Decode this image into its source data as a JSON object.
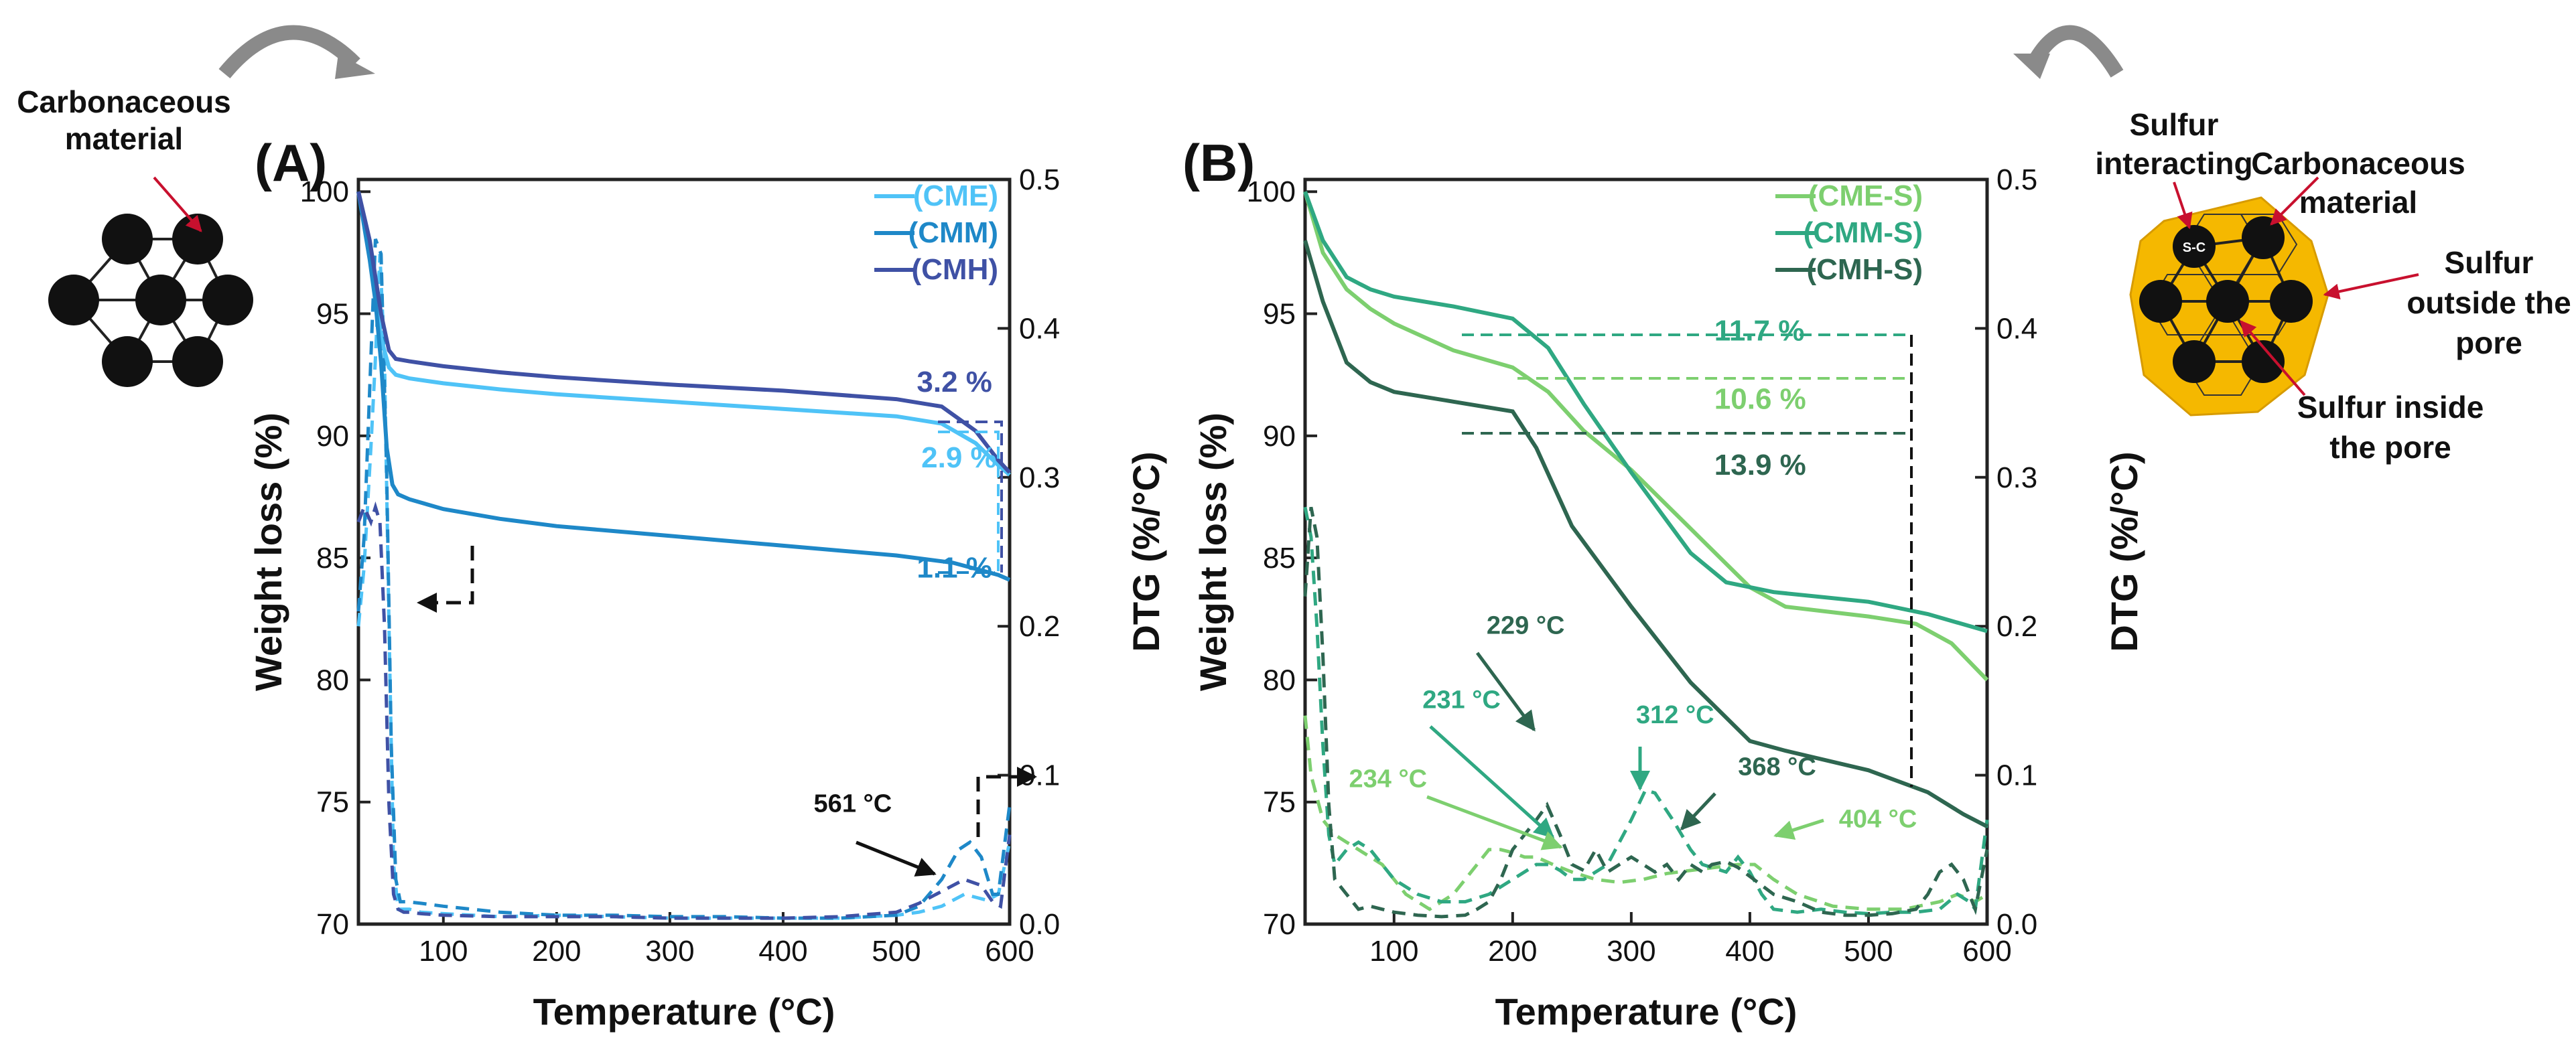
{
  "chart_data": [
    {
      "type": "line",
      "panel_label": "(A)",
      "xlabel": "Temperature (°C)",
      "ylabel": "Weight loss (%)",
      "y2label": "DTG (%/°C)",
      "xlim": [
        25,
        600
      ],
      "ylim": [
        70,
        100.5
      ],
      "y2lim": [
        0,
        0.5
      ],
      "x_ticks": [
        "100",
        "200",
        "300",
        "400",
        "500",
        "600"
      ],
      "y_ticks": [
        "70",
        "75",
        "80",
        "85",
        "90",
        "95",
        "100"
      ],
      "y2_ticks": [
        "0.0",
        "0.1",
        "0.2",
        "0.3",
        "0.4",
        "0.5"
      ],
      "legend": [
        "(CME)",
        "(CMM)",
        "(CMH)"
      ],
      "series": [
        {
          "name": "(CME)",
          "color": "#4fc3f7",
          "x": [
            25,
            35,
            45,
            52,
            58,
            70,
            100,
            150,
            200,
            300,
            400,
            500,
            540,
            570,
            590,
            600
          ],
          "y": [
            100,
            97.5,
            94,
            92.8,
            92.5,
            92.35,
            92.15,
            91.9,
            91.7,
            91.4,
            91.1,
            90.8,
            90.5,
            89.7,
            88.8,
            88.4
          ]
        },
        {
          "name": "(CMM)",
          "color": "#1e88c8",
          "x": [
            25,
            35,
            40,
            45,
            50,
            55,
            60,
            70,
            100,
            150,
            200,
            300,
            400,
            500,
            550,
            590,
            600
          ],
          "y": [
            100,
            97.2,
            95.5,
            93,
            89.5,
            88,
            87.6,
            87.4,
            87,
            86.6,
            86.3,
            85.9,
            85.5,
            85.1,
            84.8,
            84.3,
            84.1
          ]
        },
        {
          "name": "(CMH)",
          "color": "#3f51a5",
          "x": [
            25,
            35,
            45,
            52,
            58,
            70,
            100,
            150,
            200,
            300,
            400,
            500,
            540,
            570,
            590,
            600
          ],
          "y": [
            100,
            98,
            95,
            93.5,
            93.15,
            93.05,
            92.85,
            92.6,
            92.4,
            92.1,
            91.85,
            91.5,
            91.2,
            90.2,
            89,
            88.5
          ]
        }
      ],
      "dtg_series": [
        {
          "name": "(CME)",
          "color": "#4fc3f7",
          "x": [
            25,
            30,
            36,
            40,
            44,
            48,
            52,
            56,
            60,
            65,
            70,
            80,
            100,
            150,
            200,
            250,
            300,
            350,
            400,
            450,
            500,
            520,
            540,
            560,
            580,
            590,
            600
          ],
          "y": [
            0.2,
            0.24,
            0.32,
            0.38,
            0.45,
            0.38,
            0.2,
            0.04,
            0.01,
            0.01,
            0.01,
            0.008,
            0.007,
            0.005,
            0.006,
            0.005,
            0.004,
            0.004,
            0.004,
            0.004,
            0.006,
            0.008,
            0.012,
            0.02,
            0.016,
            0.02,
            0.055
          ]
        },
        {
          "name": "(CMM)",
          "color": "#1e88c8",
          "x": [
            25,
            30,
            35,
            40,
            45,
            50,
            54,
            58,
            62,
            68,
            80,
            100,
            150,
            200,
            250,
            300,
            350,
            400,
            450,
            500,
            520,
            540,
            555,
            565,
            575,
            585,
            590,
            595,
            600
          ],
          "y": [
            0.21,
            0.26,
            0.36,
            0.46,
            0.45,
            0.3,
            0.12,
            0.03,
            0.015,
            0.015,
            0.014,
            0.012,
            0.008,
            0.006,
            0.006,
            0.005,
            0.005,
            0.004,
            0.004,
            0.006,
            0.012,
            0.03,
            0.05,
            0.055,
            0.045,
            0.02,
            0.02,
            0.05,
            0.08
          ]
        },
        {
          "name": "(CMH)",
          "color": "#3f51a5",
          "x": [
            25,
            30,
            36,
            40,
            44,
            48,
            52,
            56,
            60,
            65,
            70,
            80,
            100,
            150,
            200,
            250,
            300,
            350,
            400,
            450,
            500,
            520,
            540,
            560,
            575,
            585,
            592,
            600
          ],
          "y": [
            0.27,
            0.28,
            0.27,
            0.28,
            0.27,
            0.2,
            0.08,
            0.02,
            0.01,
            0.008,
            0.008,
            0.007,
            0.006,
            0.005,
            0.005,
            0.005,
            0.004,
            0.004,
            0.004,
            0.005,
            0.008,
            0.014,
            0.022,
            0.03,
            0.026,
            0.015,
            0.012,
            0.06
          ]
        }
      ],
      "annotations": [
        {
          "text": "3.2 %",
          "x": 518,
          "y": 91.8,
          "color": "#3f51a5"
        },
        {
          "text": "2.9 %",
          "x": 522,
          "y": 88.7,
          "color": "#4fc3f7"
        },
        {
          "text": "1.1 %",
          "x": 518,
          "y": 84.2,
          "color": "#1e88c8"
        },
        {
          "text": "561 °C",
          "x": 427,
          "y": 74.6,
          "color": "#111111"
        }
      ]
    },
    {
      "type": "line",
      "panel_label": "(B)",
      "xlabel": "Temperature (°C)",
      "ylabel": "Weight loss (%)",
      "y2label": "DTG (%/°C)",
      "xlim": [
        25,
        600
      ],
      "ylim": [
        70,
        100.5
      ],
      "y2lim": [
        0,
        0.5
      ],
      "x_ticks": [
        "100",
        "200",
        "300",
        "400",
        "500",
        "600"
      ],
      "y_ticks": [
        "70",
        "75",
        "80",
        "85",
        "90",
        "95",
        "100"
      ],
      "y2_ticks": [
        "0.0",
        "0.1",
        "0.2",
        "0.3",
        "0.4",
        "0.5"
      ],
      "legend": [
        "(CME-S)",
        "(CMM-S)",
        "(CMH-S)"
      ],
      "series": [
        {
          "name": "(CME-S)",
          "color": "#7dcf6f",
          "x": [
            25,
            40,
            60,
            80,
            100,
            150,
            200,
            230,
            260,
            300,
            350,
            400,
            430,
            500,
            540,
            570,
            590,
            600
          ],
          "y": [
            100,
            97.5,
            96,
            95.2,
            94.6,
            93.5,
            92.8,
            91.8,
            90.2,
            88.6,
            86.2,
            83.8,
            83,
            82.6,
            82.3,
            81.5,
            80.5,
            80
          ]
        },
        {
          "name": "(CMM-S)",
          "color": "#2fa882",
          "x": [
            25,
            40,
            60,
            80,
            100,
            150,
            200,
            230,
            260,
            300,
            350,
            380,
            420,
            500,
            550,
            600
          ],
          "y": [
            100,
            98,
            96.5,
            96,
            95.7,
            95.3,
            94.8,
            93.6,
            91.3,
            88.5,
            85.2,
            84,
            83.6,
            83.2,
            82.7,
            82
          ]
        },
        {
          "name": "(CMH-S)",
          "color": "#2e6650",
          "x": [
            25,
            40,
            60,
            80,
            100,
            150,
            200,
            220,
            250,
            300,
            350,
            400,
            430,
            500,
            550,
            580,
            600
          ],
          "y": [
            98,
            95.5,
            93,
            92.2,
            91.8,
            91.4,
            91,
            89.5,
            86.3,
            83,
            79.9,
            77.5,
            77.1,
            76.3,
            75.4,
            74.5,
            74
          ]
        }
      ],
      "dtg_series": [
        {
          "name": "(CME-S)",
          "color": "#7dcf6f",
          "x": [
            25,
            30,
            40,
            50,
            60,
            70,
            80,
            90,
            100,
            110,
            120,
            130,
            140,
            150,
            160,
            170,
            180,
            190,
            200,
            210,
            220,
            234,
            250,
            270,
            290,
            310,
            330,
            350,
            370,
            390,
            404,
            420,
            440,
            470,
            500,
            530,
            560,
            575,
            590,
            600
          ],
          "y": [
            0.14,
            0.1,
            0.07,
            0.06,
            0.055,
            0.05,
            0.045,
            0.04,
            0.03,
            0.02,
            0.015,
            0.01,
            0.015,
            0.02,
            0.03,
            0.04,
            0.05,
            0.05,
            0.048,
            0.045,
            0.045,
            0.04,
            0.035,
            0.03,
            0.028,
            0.03,
            0.034,
            0.036,
            0.038,
            0.04,
            0.04,
            0.03,
            0.02,
            0.012,
            0.01,
            0.01,
            0.015,
            0.02,
            0.015,
            0.02
          ]
        },
        {
          "name": "(CMM-S)",
          "color": "#2fa882",
          "x": [
            25,
            30,
            35,
            40,
            45,
            50,
            60,
            70,
            80,
            90,
            100,
            120,
            140,
            160,
            180,
            200,
            220,
            231,
            240,
            250,
            260,
            280,
            300,
            312,
            320,
            335,
            350,
            360,
            380,
            390,
            400,
            410,
            420,
            440,
            460,
            480,
            500,
            520,
            540,
            560,
            575,
            585,
            590,
            600
          ],
          "y": [
            0.28,
            0.26,
            0.2,
            0.12,
            0.06,
            0.04,
            0.05,
            0.055,
            0.05,
            0.04,
            0.03,
            0.02,
            0.015,
            0.015,
            0.02,
            0.03,
            0.04,
            0.04,
            0.036,
            0.03,
            0.03,
            0.04,
            0.07,
            0.09,
            0.088,
            0.07,
            0.05,
            0.04,
            0.035,
            0.045,
            0.035,
            0.02,
            0.01,
            0.008,
            0.01,
            0.008,
            0.007,
            0.008,
            0.008,
            0.01,
            0.02,
            0.015,
            0.01,
            0.07
          ]
        },
        {
          "name": "(CMH-S)",
          "color": "#2e6650",
          "x": [
            25,
            30,
            35,
            40,
            45,
            50,
            60,
            70,
            80,
            90,
            100,
            120,
            140,
            160,
            170,
            180,
            190,
            200,
            210,
            220,
            229,
            240,
            250,
            260,
            270,
            280,
            290,
            300,
            310,
            320,
            330,
            340,
            350,
            360,
            368,
            380,
            390,
            400,
            420,
            440,
            460,
            480,
            500,
            520,
            540,
            550,
            560,
            570,
            580,
            590,
            600
          ],
          "y": [
            0.22,
            0.28,
            0.26,
            0.18,
            0.08,
            0.03,
            0.02,
            0.01,
            0.012,
            0.01,
            0.008,
            0.006,
            0.005,
            0.006,
            0.01,
            0.015,
            0.03,
            0.05,
            0.06,
            0.07,
            0.08,
            0.06,
            0.04,
            0.036,
            0.05,
            0.035,
            0.04,
            0.045,
            0.04,
            0.035,
            0.04,
            0.03,
            0.04,
            0.035,
            0.04,
            0.042,
            0.038,
            0.032,
            0.02,
            0.015,
            0.008,
            0.006,
            0.006,
            0.007,
            0.01,
            0.02,
            0.035,
            0.04,
            0.03,
            0.01,
            0.05
          ]
        }
      ],
      "pct_annotations": [
        {
          "text": "11.7 %",
          "x": 370,
          "y": 93.9,
          "color": "#2fa882"
        },
        {
          "text": "10.6 %",
          "x": 370,
          "y": 91.1,
          "color": "#7dcf6f"
        },
        {
          "text": "13.9 %",
          "x": 370,
          "y": 88.4,
          "color": "#2e6650"
        }
      ],
      "temp_annotations": [
        {
          "text": "229 °C",
          "x": 178,
          "y": 0.195,
          "color": "#2e6650"
        },
        {
          "text": "231 °C",
          "x": 124,
          "y": 0.145,
          "color": "#2fa882"
        },
        {
          "text": "312 °C",
          "x": 304,
          "y": 0.135,
          "color": "#2fa882"
        },
        {
          "text": "368 °C",
          "x": 390,
          "y": 0.1,
          "color": "#2e6650"
        },
        {
          "text": "234 °C",
          "x": 62,
          "y": 0.092,
          "color": "#7dcf6f"
        },
        {
          "text": "404 °C",
          "x": 475,
          "y": 0.065,
          "color": "#7dcf6f"
        }
      ]
    }
  ],
  "illustrations": {
    "left_label": [
      "Carbonaceous",
      "material"
    ],
    "right_labels": {
      "sulfur_interacting": [
        "Sulfur",
        "interacting"
      ],
      "carbonaceous": [
        "Carbonaceous",
        "material"
      ],
      "sulfur_outside": [
        "Sulfur",
        "outside the",
        "pore"
      ],
      "sulfur_inside": [
        "Sulfur inside",
        "the pore"
      ],
      "sc_tag": "S-C"
    },
    "ring_color": "#f5b800",
    "arrow_color": "#c8102e"
  }
}
